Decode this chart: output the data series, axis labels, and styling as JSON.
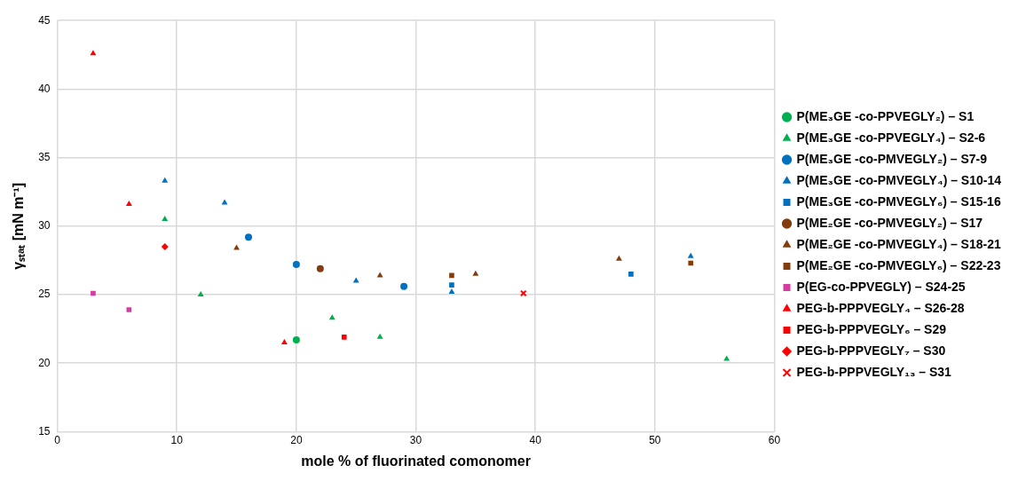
{
  "chart_data": {
    "type": "scatter",
    "xlabel": "mole % of fluorinated comonomer",
    "ylabel": "γₛₜₐₜ [mN m⁻¹]",
    "xlim": [
      0,
      60
    ],
    "xticks": [
      0,
      10,
      20,
      30,
      40,
      50,
      60
    ],
    "ylim": [
      15,
      45
    ],
    "yticks": [
      15,
      20,
      25,
      30,
      35,
      40,
      45
    ],
    "grid": true,
    "legend": "right",
    "series": [
      {
        "name": "P(ME₃GE -co-PPVEGLY₂) – S1",
        "color": "#00b050",
        "marker": "circle",
        "x": [
          20
        ],
        "values": [
          21.7
        ]
      },
      {
        "name": "P(ME₃GE -co-PPVEGLY₄) – S2-6",
        "color": "#00b050",
        "marker": "triangle",
        "x": [
          9,
          12,
          23,
          27,
          56
        ],
        "values": [
          30.5,
          25.0,
          23.3,
          21.9,
          20.3
        ]
      },
      {
        "name": "P(ME₃GE -co-PMVEGLY₂) – S7-9",
        "color": "#0070c0",
        "marker": "circle",
        "x": [
          16,
          20,
          29
        ],
        "values": [
          29.2,
          27.2,
          25.6
        ]
      },
      {
        "name": "P(ME₃GE -co-PMVEGLY₄) – S10-14",
        "color": "#0070c0",
        "marker": "triangle",
        "x": [
          9,
          14,
          25,
          33,
          53
        ],
        "values": [
          33.3,
          31.7,
          26.0,
          25.2,
          27.8
        ]
      },
      {
        "name": "P(ME₃GE -co-PMVEGLY₆) – S15-16",
        "color": "#0070c0",
        "marker": "square",
        "x": [
          33,
          48
        ],
        "values": [
          25.7,
          26.5
        ]
      },
      {
        "name": "P(ME₂GE -co-PMVEGLY₂) – S17",
        "color": "#843c0c",
        "marker": "circle",
        "x": [
          22
        ],
        "values": [
          26.9
        ]
      },
      {
        "name": "P(ME₂GE -co-PMVEGLY₄) – S18-21",
        "color": "#843c0c",
        "marker": "triangle",
        "x": [
          15,
          27,
          35,
          47
        ],
        "values": [
          28.4,
          26.4,
          26.5,
          27.6
        ]
      },
      {
        "name": "P(ME₂GE -co-PMVEGLY₆) – S22-23",
        "color": "#843c0c",
        "marker": "square",
        "x": [
          33,
          53
        ],
        "values": [
          26.4,
          27.3
        ]
      },
      {
        "name": "P(EG-co-PPVEGLY) – S24-25",
        "color": "#d63ca0",
        "marker": "square",
        "x": [
          3,
          6
        ],
        "values": [
          25.1,
          23.9
        ]
      },
      {
        "name": "PEG-b-PPPVEGLY₄ – S26-28",
        "color": "#ff0000",
        "marker": "triangle",
        "x": [
          3,
          6,
          19
        ],
        "values": [
          42.6,
          31.6,
          21.5
        ]
      },
      {
        "name": "PEG-b-PPPVEGLY₆ – S29",
        "color": "#ff0000",
        "marker": "square",
        "x": [
          24
        ],
        "values": [
          21.9
        ]
      },
      {
        "name": "PEG-b-PPPVEGLY₇ – S30",
        "color": "#ff0000",
        "marker": "diamond",
        "x": [
          9
        ],
        "values": [
          28.5
        ]
      },
      {
        "name": "PEG-b-PPPVEGLY₁₃ – S31",
        "color": "#ff0000",
        "marker": "cross",
        "x": [
          39
        ],
        "values": [
          25.1
        ]
      }
    ]
  }
}
